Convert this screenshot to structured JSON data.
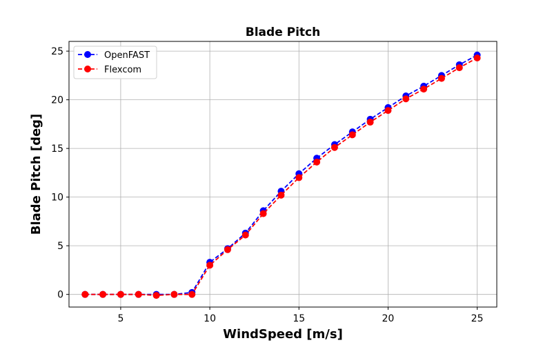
{
  "chart_data": {
    "type": "line",
    "title": "Blade Pitch",
    "xlabel": "WindSpeed [m/s]",
    "ylabel": "Blade Pitch [deg]",
    "xlim": [
      2.1,
      26.1
    ],
    "ylim": [
      -1.3,
      26.0
    ],
    "xticks": [
      5,
      10,
      15,
      20,
      25
    ],
    "yticks": [
      0,
      5,
      10,
      15,
      20,
      25
    ],
    "grid": true,
    "legend_position": "top-left",
    "x": [
      3,
      4,
      5,
      6,
      7,
      8,
      9,
      10,
      11,
      12,
      13,
      14,
      15,
      16,
      17,
      18,
      19,
      20,
      21,
      22,
      23,
      24,
      25
    ],
    "series": [
      {
        "name": "OpenFAST",
        "color": "#0000ff",
        "linestyle": "dashed",
        "marker": "circle",
        "values": [
          0.0,
          0.0,
          0.0,
          0.0,
          0.0,
          0.0,
          0.2,
          3.3,
          4.7,
          6.3,
          8.6,
          10.6,
          12.4,
          14.0,
          15.4,
          16.7,
          18.0,
          19.2,
          20.4,
          21.4,
          22.5,
          23.6,
          24.6
        ]
      },
      {
        "name": "Flexcom",
        "color": "#ff0000",
        "linestyle": "dashed",
        "marker": "circle",
        "values": [
          0.0,
          0.0,
          0.0,
          0.0,
          -0.1,
          0.0,
          0.0,
          3.0,
          4.6,
          6.1,
          8.3,
          10.2,
          12.0,
          13.6,
          15.1,
          16.4,
          17.7,
          18.9,
          20.1,
          21.1,
          22.2,
          23.3,
          24.3
        ]
      }
    ]
  }
}
